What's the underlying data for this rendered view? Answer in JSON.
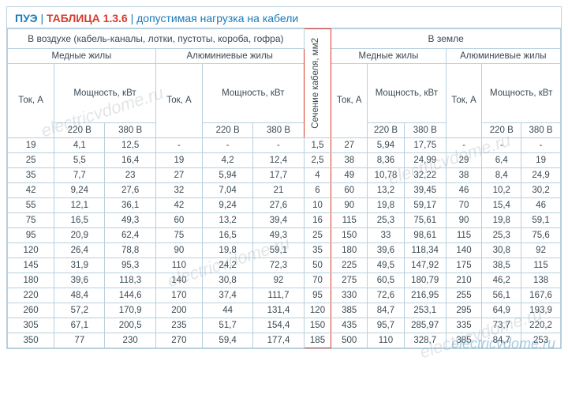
{
  "title": {
    "pue": "ПУЭ",
    "tab": "ТАБЛИЦА 1.3.6",
    "desc": "допустимая нагрузка на кабели"
  },
  "headers": {
    "air": "В воздухе (кабель-каналы, лотки, пустоты, короба, гофра)",
    "section": "Сечение кабеля, мм2",
    "ground": "В земле",
    "copper": "Медные жилы",
    "alum": "Алюминиевые жилы",
    "current": "Ток, А",
    "power": "Мощность, кВт",
    "v220": "220 В",
    "v380": "380 В"
  },
  "rows": [
    [
      "19",
      "4,1",
      "12,5",
      "-",
      "-",
      "-",
      "1,5",
      "27",
      "5,94",
      "17,75",
      "-",
      "-",
      "-"
    ],
    [
      "25",
      "5,5",
      "16,4",
      "19",
      "4,2",
      "12,4",
      "2,5",
      "38",
      "8,36",
      "24,99",
      "29",
      "6,4",
      "19"
    ],
    [
      "35",
      "7,7",
      "23",
      "27",
      "5,94",
      "17,7",
      "4",
      "49",
      "10,78",
      "32,22",
      "38",
      "8,4",
      "24,9"
    ],
    [
      "42",
      "9,24",
      "27,6",
      "32",
      "7,04",
      "21",
      "6",
      "60",
      "13,2",
      "39,45",
      "46",
      "10,2",
      "30,2"
    ],
    [
      "55",
      "12,1",
      "36,1",
      "42",
      "9,24",
      "27,6",
      "10",
      "90",
      "19,8",
      "59,17",
      "70",
      "15,4",
      "46"
    ],
    [
      "75",
      "16,5",
      "49,3",
      "60",
      "13,2",
      "39,4",
      "16",
      "115",
      "25,3",
      "75,61",
      "90",
      "19,8",
      "59,1"
    ],
    [
      "95",
      "20,9",
      "62,4",
      "75",
      "16,5",
      "49,3",
      "25",
      "150",
      "33",
      "98,61",
      "115",
      "25,3",
      "75,6"
    ],
    [
      "120",
      "26,4",
      "78,8",
      "90",
      "19,8",
      "59,1",
      "35",
      "180",
      "39,6",
      "118,34",
      "140",
      "30,8",
      "92"
    ],
    [
      "145",
      "31,9",
      "95,3",
      "110",
      "24,2",
      "72,3",
      "50",
      "225",
      "49,5",
      "147,92",
      "175",
      "38,5",
      "115"
    ],
    [
      "180",
      "39,6",
      "118,3",
      "140",
      "30,8",
      "92",
      "70",
      "275",
      "60,5",
      "180,79",
      "210",
      "46,2",
      "138"
    ],
    [
      "220",
      "48,4",
      "144,6",
      "170",
      "37,4",
      "111,7",
      "95",
      "330",
      "72,6",
      "216,95",
      "255",
      "56,1",
      "167,6"
    ],
    [
      "260",
      "57,2",
      "170,9",
      "200",
      "44",
      "131,4",
      "120",
      "385",
      "84,7",
      "253,1",
      "295",
      "64,9",
      "193,9"
    ],
    [
      "305",
      "67,1",
      "200,5",
      "235",
      "51,7",
      "154,4",
      "150",
      "435",
      "95,7",
      "285,97",
      "335",
      "73,7",
      "220,2"
    ],
    [
      "350",
      "77",
      "230",
      "270",
      "59,4",
      "177,4",
      "185",
      "500",
      "110",
      "328,7",
      "385",
      "84,7",
      "253"
    ]
  ],
  "watermark": "electricvdome.ru",
  "colors": {
    "border": "#b8cfde",
    "accent": "#d93a2b",
    "textBlue": "#1a7ab8"
  }
}
